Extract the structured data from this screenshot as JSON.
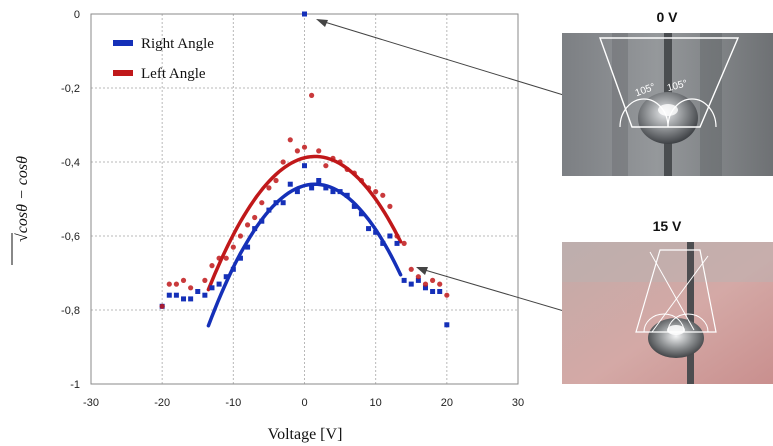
{
  "chart_data": {
    "type": "scatter",
    "xlabel": "Voltage [V]",
    "ylabel_parts": [
      "√",
      "cosθ",
      " − cosθ"
    ],
    "xlim": [
      -30,
      30
    ],
    "ylim": [
      -1,
      0
    ],
    "x_ticks": [
      -30,
      -20,
      -10,
      0,
      10,
      20,
      30
    ],
    "x_tick_labels": [
      "-30",
      "-20",
      "-10",
      "0",
      "10",
      "20",
      "30"
    ],
    "y_ticks": [
      0,
      -0.2,
      -0.4,
      -0.6,
      -0.8,
      -1
    ],
    "y_tick_labels": [
      "0",
      "-0,2",
      "-0,4",
      "-0,6",
      "-0,8",
      "-1"
    ],
    "grid": true,
    "legend_position": "top-left",
    "series": [
      {
        "name": "Right Angle",
        "color": "#1530b8",
        "points": [
          [
            -20,
            -0.79
          ],
          [
            -19,
            -0.76
          ],
          [
            -18,
            -0.76
          ],
          [
            -17,
            -0.77
          ],
          [
            -16,
            -0.77
          ],
          [
            -15,
            -0.75
          ],
          [
            -14,
            -0.76
          ],
          [
            -13,
            -0.74
          ],
          [
            -12,
            -0.73
          ],
          [
            -11,
            -0.71
          ],
          [
            -10,
            -0.69
          ],
          [
            -9,
            -0.66
          ],
          [
            -8,
            -0.63
          ],
          [
            -7,
            -0.58
          ],
          [
            -6,
            -0.56
          ],
          [
            -5,
            -0.53
          ],
          [
            -4,
            -0.51
          ],
          [
            -3,
            -0.51
          ],
          [
            -2,
            -0.46
          ],
          [
            -1,
            -0.48
          ],
          [
            0,
            -0.41
          ],
          [
            0,
            0
          ],
          [
            1,
            -0.47
          ],
          [
            2,
            -0.45
          ],
          [
            3,
            -0.47
          ],
          [
            4,
            -0.48
          ],
          [
            5,
            -0.48
          ],
          [
            6,
            -0.49
          ],
          [
            7,
            -0.52
          ],
          [
            8,
            -0.54
          ],
          [
            9,
            -0.58
          ],
          [
            10,
            -0.59
          ],
          [
            11,
            -0.62
          ],
          [
            12,
            -0.6
          ],
          [
            13,
            -0.62
          ],
          [
            14,
            -0.72
          ],
          [
            15,
            -0.73
          ],
          [
            16,
            -0.72
          ],
          [
            17,
            -0.74
          ],
          [
            18,
            -0.75
          ],
          [
            19,
            -0.75
          ],
          [
            20,
            -0.84
          ]
        ],
        "fit": {
          "vertex_x": 1.5,
          "vertex_y": -0.46,
          "a": 0.0017,
          "x_range": [
            -13.5,
            13.5
          ]
        }
      },
      {
        "name": "Left Angle",
        "color": "#c0181a",
        "points": [
          [
            -20,
            -0.79
          ],
          [
            -19,
            -0.73
          ],
          [
            -18,
            -0.73
          ],
          [
            -17,
            -0.72
          ],
          [
            -16,
            -0.74
          ],
          [
            -14,
            -0.72
          ],
          [
            -13,
            -0.68
          ],
          [
            -12,
            -0.66
          ],
          [
            -11,
            -0.66
          ],
          [
            -10,
            -0.63
          ],
          [
            -9,
            -0.6
          ],
          [
            -8,
            -0.57
          ],
          [
            -7,
            -0.55
          ],
          [
            -6,
            -0.51
          ],
          [
            -5,
            -0.47
          ],
          [
            -4,
            -0.45
          ],
          [
            -3,
            -0.4
          ],
          [
            -2,
            -0.34
          ],
          [
            -1,
            -0.37
          ],
          [
            0,
            -0.36
          ],
          [
            1,
            -0.22
          ],
          [
            2,
            -0.37
          ],
          [
            3,
            -0.41
          ],
          [
            4,
            -0.39
          ],
          [
            5,
            -0.4
          ],
          [
            6,
            -0.42
          ],
          [
            7,
            -0.43
          ],
          [
            8,
            -0.45
          ],
          [
            9,
            -0.47
          ],
          [
            10,
            -0.48
          ],
          [
            11,
            -0.49
          ],
          [
            12,
            -0.52
          ],
          [
            13,
            -0.6
          ],
          [
            14,
            -0.62
          ],
          [
            15,
            -0.69
          ],
          [
            16,
            -0.71
          ],
          [
            17,
            -0.73
          ],
          [
            18,
            -0.72
          ],
          [
            19,
            -0.73
          ],
          [
            20,
            -0.76
          ]
        ],
        "fit": {
          "vertex_x": 1.5,
          "vertex_y": -0.385,
          "a": 0.0016,
          "x_range": [
            -13.5,
            13.5
          ]
        }
      }
    ],
    "legend": [
      {
        "label": "Right Angle",
        "color": "#1530b8"
      },
      {
        "label": "Left Angle",
        "color": "#c0181a"
      }
    ]
  },
  "photos": {
    "top_title": "0 V",
    "bottom_title": "15 V",
    "top_angle_labels": [
      "105°",
      "105°"
    ]
  }
}
